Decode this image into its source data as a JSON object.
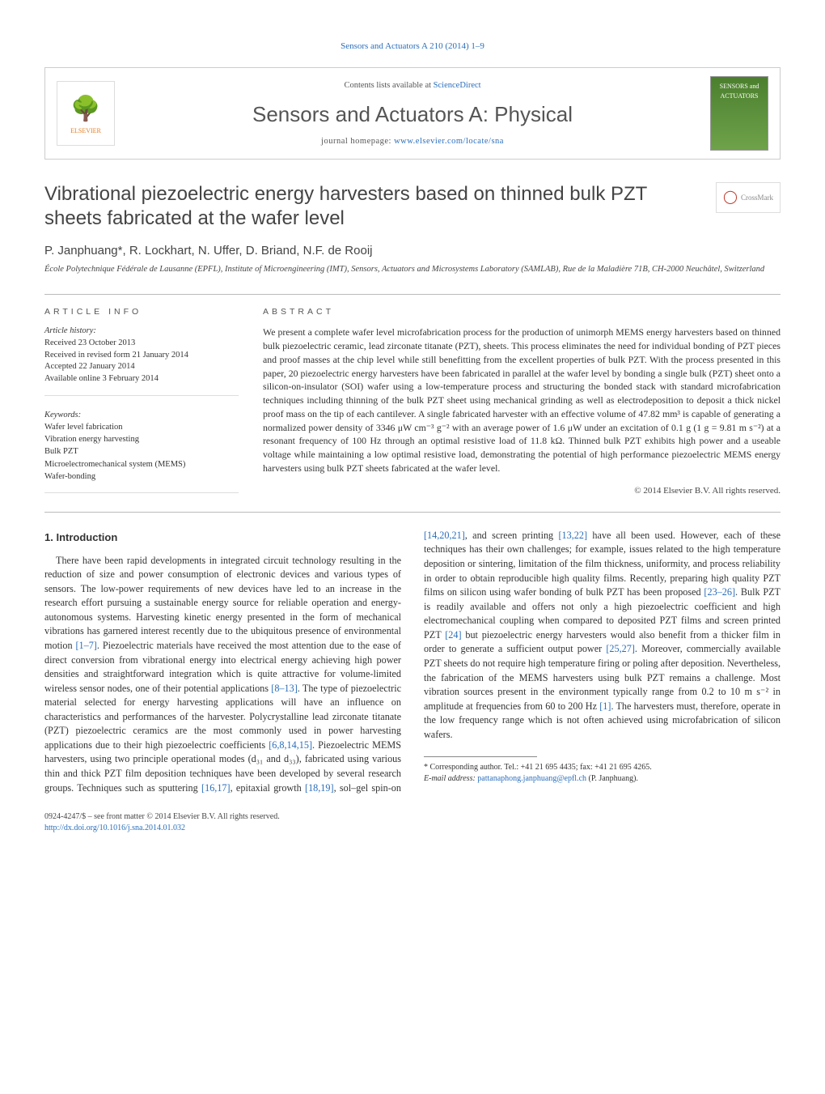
{
  "runningHeader": "Sensors and Actuators A 210 (2014) 1–9",
  "topBox": {
    "contentsLine": "Contents lists available at ",
    "contentsLink": "ScienceDirect",
    "journalName": "Sensors and Actuators A: Physical",
    "homepagePrefix": "journal homepage: ",
    "homepageLink": "www.elsevier.com/locate/sna",
    "elsevierWordmark": "ELSEVIER",
    "coverLabel1": "SENSORS and",
    "coverLabel2": "ACTUATORS"
  },
  "article": {
    "title": "Vibrational piezoelectric energy harvesters based on thinned bulk PZT sheets fabricated at the wafer level",
    "crossmarkLabel": "CrossMark",
    "authors": "P. Janphuang*, R. Lockhart, N. Uffer, D. Briand, N.F. de Rooij",
    "affiliation": "École Polytechnique Fédérale de Lausanne (EPFL), Institute of Microengineering (IMT), Sensors, Actuators and Microsystems Laboratory (SAMLAB), Rue de la Maladière 71B, CH-2000 Neuchâtel, Switzerland"
  },
  "info": {
    "articleInfoLabel": "article info",
    "abstractLabel": "abstract",
    "historyHeading": "Article history:",
    "history": {
      "received": "Received 23 October 2013",
      "revised": "Received in revised form 21 January 2014",
      "accepted": "Accepted 22 January 2014",
      "online": "Available online 3 February 2014"
    },
    "keywordsHeading": "Keywords:",
    "keywords": [
      "Wafer level fabrication",
      "Vibration energy harvesting",
      "Bulk PZT",
      "Microelectromechanical system (MEMS)",
      "Wafer-bonding"
    ],
    "abstract": "We present a complete wafer level microfabrication process for the production of unimorph MEMS energy harvesters based on thinned bulk piezoelectric ceramic, lead zirconate titanate (PZT), sheets. This process eliminates the need for individual bonding of PZT pieces and proof masses at the chip level while still benefitting from the excellent properties of bulk PZT. With the process presented in this paper, 20 piezoelectric energy harvesters have been fabricated in parallel at the wafer level by bonding a single bulk (PZT) sheet onto a silicon-on-insulator (SOI) wafer using a low-temperature process and structuring the bonded stack with standard microfabrication techniques including thinning of the bulk PZT sheet using mechanical grinding as well as electrodeposition to deposit a thick nickel proof mass on the tip of each cantilever. A single fabricated harvester with an effective volume of 47.82 mm³ is capable of generating a normalized power density of 3346 μW cm⁻³ g⁻² with an average power of 1.6 μW under an excitation of 0.1 g (1 g = 9.81 m s⁻²) at a resonant frequency of 100 Hz through an optimal resistive load of 11.8 kΩ. Thinned bulk PZT exhibits high power and a useable voltage while maintaining a low optimal resistive load, demonstrating the potential of high performance piezoelectric MEMS energy harvesters using bulk PZT sheets fabricated at the wafer level.",
    "copyright": "© 2014 Elsevier B.V. All rights reserved."
  },
  "body": {
    "heading": "1. Introduction",
    "p1a": "There have been rapid developments in integrated circuit technology resulting in the reduction of size and power consumption of electronic devices and various types of sensors. The low-power requirements of new devices have led to an increase in the research effort pursuing a sustainable energy source for reliable operation and energy-autonomous systems. Harvesting kinetic energy presented in the form of mechanical vibrations has garnered interest recently due to the ubiquitous presence of environmental motion ",
    "ref1": "[1–7]",
    "p1b": ". Piezoelectric materials have received the most attention due to the ease of direct conversion from vibrational energy into electrical energy achieving high power densities and straightforward integration which is quite attractive for volume-limited wireless sensor nodes, one of their potential applications ",
    "ref2": "[8–13]",
    "p1c": ". The type of piezoelectric material selected for energy harvesting applications will have an influence on characteristics and performances of the harvester. Polycrystalline lead zirconate titanate (PZT) piezoelectric ceramics are the most commonly used in power harvesting applications due to their high piezoelectric coefficients ",
    "ref3": "[6,8,14,15]",
    "p1d": ". ",
    "p2a": "Piezoelectric MEMS harvesters, using two principle operational modes (d₃₁ and d₃₃), fabricated using various thin and thick PZT film deposition techniques have been developed by several research groups. Techniques such as sputtering ",
    "ref4": "[16,17]",
    "p2b": ", epitaxial growth ",
    "ref5": "[18,19]",
    "p2c": ", sol–gel spin-on ",
    "ref6": "[14,20,21]",
    "p2d": ", and screen printing ",
    "ref7": "[13,22]",
    "p2e": " have all been used. However, each of these techniques has their own challenges; for example, issues related to the high temperature deposition or sintering, limitation of the film thickness, uniformity, and process reliability in order to obtain reproducible high quality films. Recently, preparing high quality PZT films on silicon using wafer bonding of bulk PZT has been proposed ",
    "ref8": "[23–26]",
    "p2f": ". Bulk PZT is readily available and offers not only a high piezoelectric coefficient and high electromechanical coupling when compared to deposited PZT films and screen printed PZT ",
    "ref9": "[24]",
    "p2g": " but piezoelectric energy harvesters would also benefit from a thicker film in order to generate a sufficient output power ",
    "ref10": "[25,27]",
    "p2h": ". Moreover, commercially available PZT sheets do not require high temperature firing or poling after deposition. Nevertheless, the fabrication of the MEMS harvesters using bulk PZT remains a challenge. Most vibration sources present in the environment typically range from 0.2 to 10 m s⁻² in amplitude at frequencies from 60 to 200 Hz ",
    "ref11": "[1]",
    "p2i": ". The harvesters must, therefore, operate in the low frequency range which is not often achieved using microfabrication of silicon wafers."
  },
  "footnote": {
    "corr": "* Corresponding author. Tel.: +41 21 695 4435; fax: +41 21 695 4265.",
    "emailLabel": "E-mail address: ",
    "email": "pattanaphong.janphuang@epfl.ch",
    "emailSuffix": " (P. Janphuang)."
  },
  "bottom": {
    "issn": "0924-4247/$ – see front matter © 2014 Elsevier B.V. All rights reserved.",
    "doi": "http://dx.doi.org/10.1016/j.sna.2014.01.032"
  },
  "colors": {
    "link": "#2a6ebb",
    "text": "#333333",
    "muted": "#555555",
    "rule": "#bbbbbb"
  },
  "typography": {
    "bodySizePx": 12.2,
    "abstractSizePx": 11.8,
    "titleSizePx": 24,
    "journalSizePx": 26,
    "smallSizePx": 10.5
  },
  "layout": {
    "pageWidthPx": 1020,
    "pageHeightPx": 1351,
    "columns": 2,
    "columnGapPx": 28
  }
}
